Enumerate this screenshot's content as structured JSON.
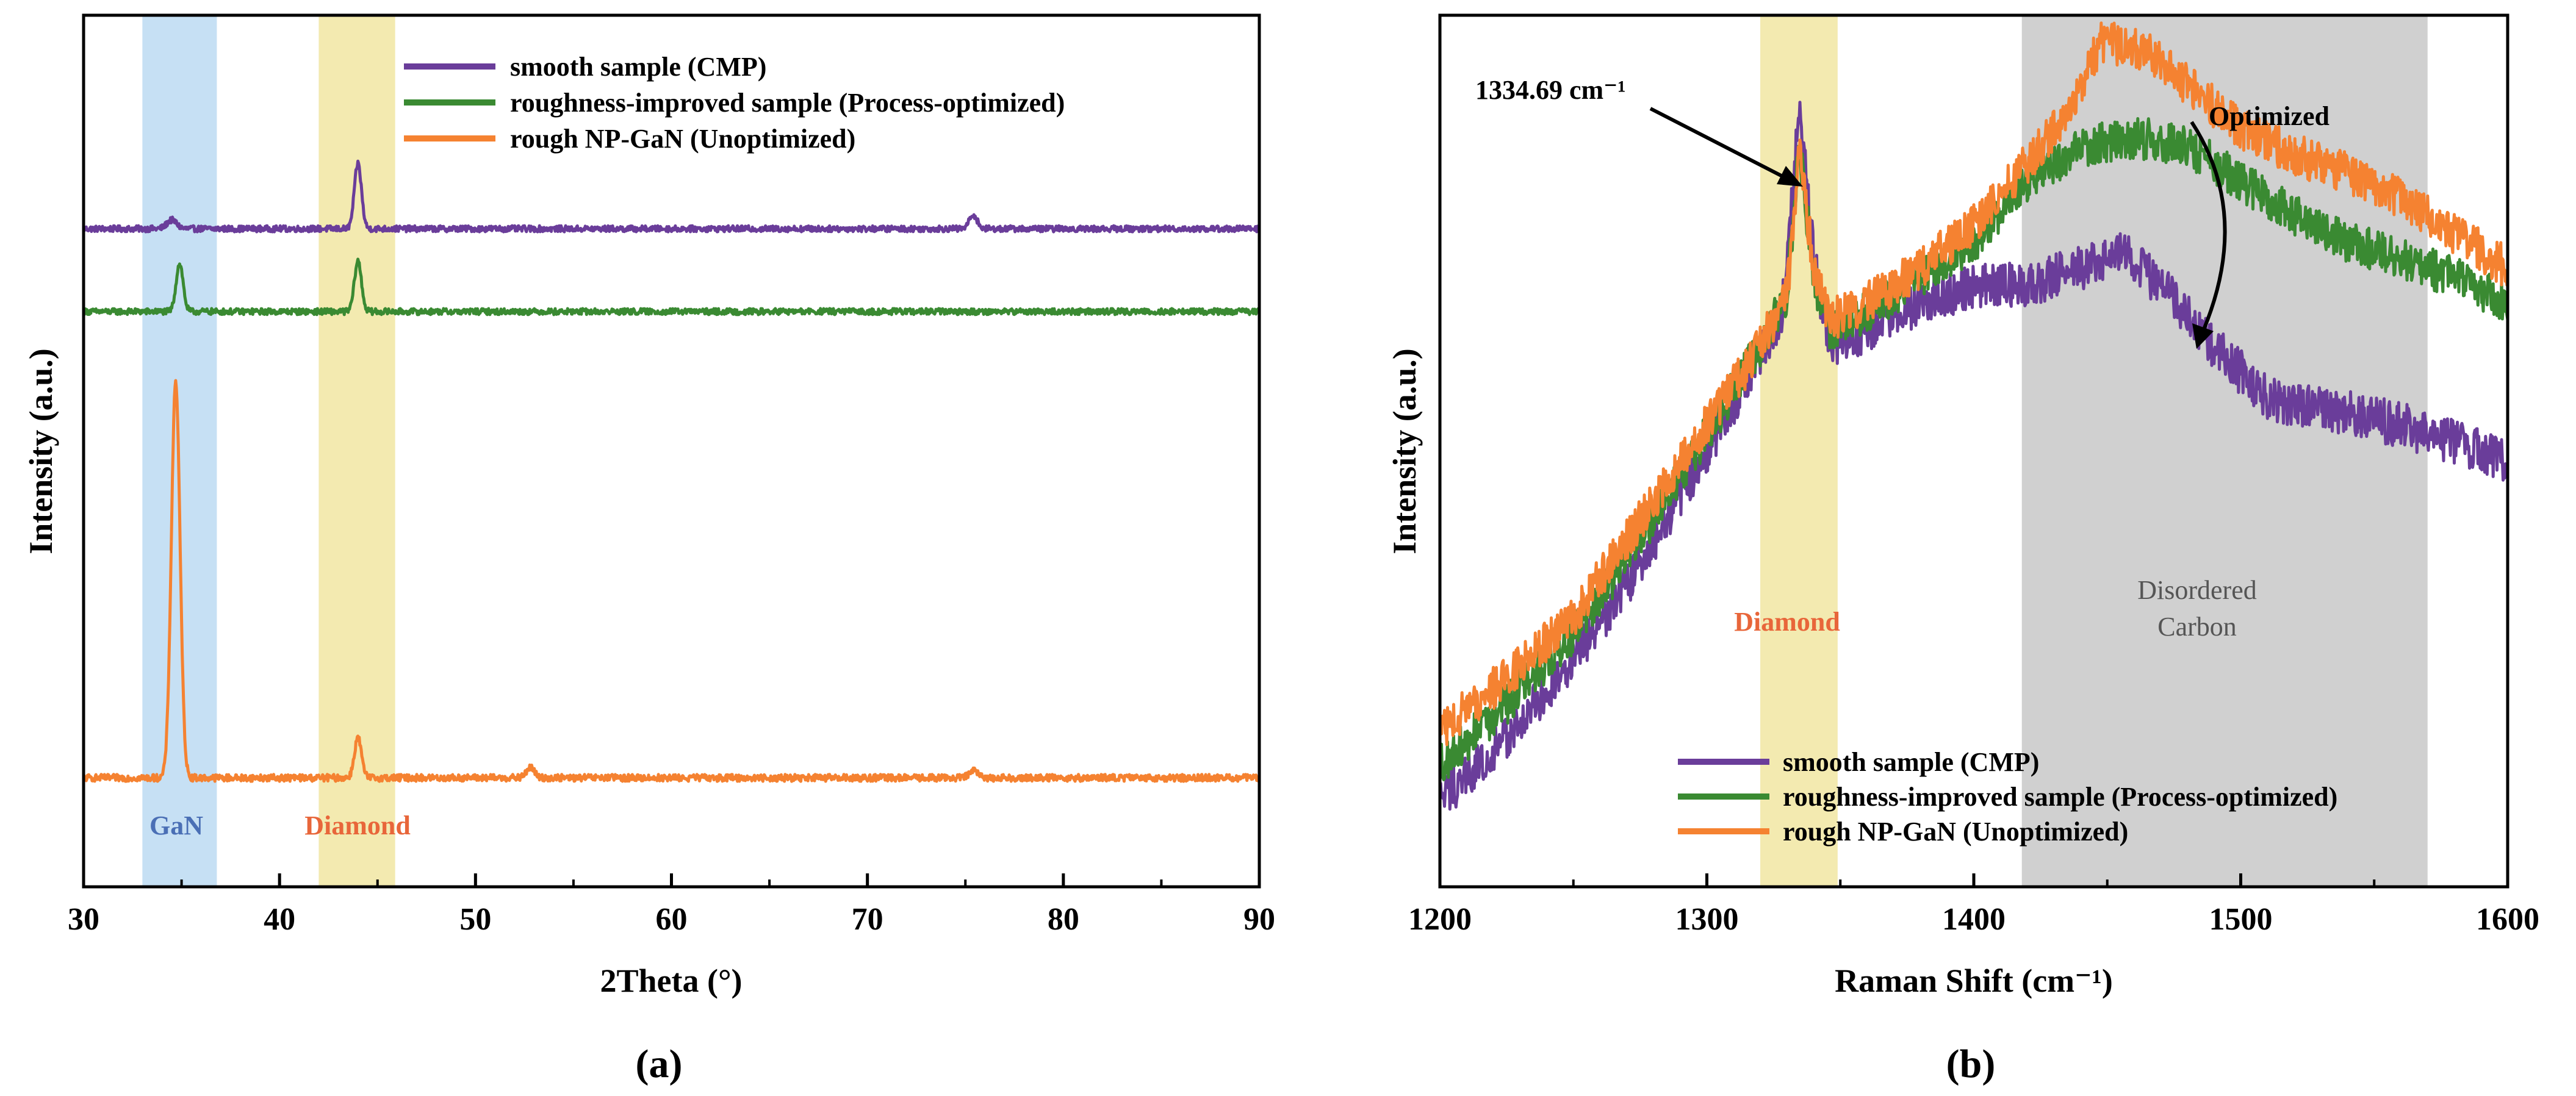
{
  "colors": {
    "smooth": "#6a3d9a",
    "improved": "#3a8a32",
    "rough": "#f58231",
    "gan_band": "#c6e0f4",
    "diamond_band": "#f3eab0",
    "disordered_band": "#d0d0d0",
    "gan_text": "#4a6fb5",
    "diamond_text": "#e8663a",
    "carbon_text": "#555555"
  },
  "chart_data": [
    {
      "id": "a",
      "type": "line",
      "panel_label": "(a)",
      "title": "",
      "xlabel": "2Theta (°)",
      "ylabel": "Intensity (a.u.)",
      "xlim": [
        30,
        90
      ],
      "xticks": [
        "30",
        "40",
        "50",
        "60",
        "70",
        "80",
        "90"
      ],
      "ylim": [
        0,
        100
      ],
      "yticks_shown": false,
      "legend": {
        "position": "top-center",
        "entries": [
          "smooth sample (CMP)",
          "roughness-improved sample (Process-optimized)",
          "rough NP-GaN (Unoptimized)"
        ]
      },
      "bands": [
        {
          "label": "GaN",
          "x_range": [
            33.0,
            36.8
          ],
          "color_key": "gan_band",
          "text_color_key": "gan_text"
        },
        {
          "label": "Diamond",
          "x_range": [
            42.0,
            45.9
          ],
          "color_key": "diamond_band",
          "text_color_key": "diamond_text"
        }
      ],
      "series": [
        {
          "name": "smooth sample (CMP)",
          "color_key": "smooth",
          "baseline": 75.5,
          "noise": 0.35,
          "peaks": [
            {
              "x": 34.5,
              "h": 1.0,
              "w": 0.25
            },
            {
              "x": 44.0,
              "h": 7.5,
              "w": 0.18
            },
            {
              "x": 75.4,
              "h": 1.6,
              "w": 0.2
            }
          ]
        },
        {
          "name": "roughness-improved sample (Process-optimized)",
          "color_key": "improved",
          "baseline": 66.0,
          "noise": 0.35,
          "peaks": [
            {
              "x": 34.9,
              "h": 5.5,
              "w": 0.18
            },
            {
              "x": 44.0,
              "h": 5.8,
              "w": 0.18
            }
          ]
        },
        {
          "name": "rough NP-GaN (Unoptimized)",
          "color_key": "rough",
          "baseline": 12.5,
          "noise": 0.4,
          "peaks": [
            {
              "x": 34.7,
              "h": 45.5,
              "w": 0.22
            },
            {
              "x": 44.0,
              "h": 4.6,
              "w": 0.18
            },
            {
              "x": 52.8,
              "h": 1.2,
              "w": 0.2
            },
            {
              "x": 75.4,
              "h": 1.0,
              "w": 0.2
            }
          ]
        }
      ]
    },
    {
      "id": "b",
      "type": "line",
      "panel_label": "(b)",
      "title": "",
      "xlabel": "Raman Shift (cm⁻¹)",
      "ylabel": "Intensity (a.u.)",
      "xlim": [
        1200,
        1600
      ],
      "xticks": [
        "1200",
        "1300",
        "1400",
        "1500",
        "1600"
      ],
      "ylim": [
        0,
        100
      ],
      "yticks_shown": false,
      "legend": {
        "position": "bottom-center",
        "entries": [
          "smooth sample (CMP)",
          "roughness-improved sample (Process-optimized)",
          "rough NP-GaN (Unoptimized)"
        ]
      },
      "bands": [
        {
          "label": "Diamond",
          "x_range": [
            1320,
            1349
          ],
          "color_key": "diamond_band",
          "text_color_key": "diamond_text"
        },
        {
          "label": "Disordered Carbon",
          "x_range": [
            1418,
            1570
          ],
          "color_key": "disordered_band",
          "text_color_key": "carbon_text"
        }
      ],
      "annotations": {
        "peak_label": "1334.69 cm⁻¹",
        "peak_x": 1334.69,
        "optimized_label": "Optimized"
      },
      "series": [
        {
          "name": "smooth sample (CMP)",
          "color_key": "smooth",
          "noise": 1.3,
          "points": [
            [
              1200,
              10
            ],
            [
              1225,
              17
            ],
            [
              1250,
              26
            ],
            [
              1275,
              37
            ],
            [
              1300,
              50
            ],
            [
              1320,
              61
            ],
            [
              1328,
              66
            ],
            [
              1334.69,
              89
            ],
            [
              1340,
              72
            ],
            [
              1346,
              62
            ],
            [
              1360,
              64
            ],
            [
              1380,
              67
            ],
            [
              1400,
              69
            ],
            [
              1420,
              69
            ],
            [
              1440,
              71
            ],
            [
              1455,
              73
            ],
            [
              1470,
              69
            ],
            [
              1490,
              62
            ],
            [
              1510,
              56
            ],
            [
              1530,
              55
            ],
            [
              1560,
              53
            ],
            [
              1580,
              51
            ],
            [
              1600,
              49
            ]
          ]
        },
        {
          "name": "roughness-improved sample (Process-optimized)",
          "color_key": "improved",
          "noise": 1.2,
          "points": [
            [
              1200,
              14
            ],
            [
              1225,
              21
            ],
            [
              1250,
              29
            ],
            [
              1275,
              40
            ],
            [
              1300,
              52
            ],
            [
              1320,
              62
            ],
            [
              1330,
              68
            ],
            [
              1334.69,
              85
            ],
            [
              1340,
              70
            ],
            [
              1346,
              64
            ],
            [
              1360,
              66
            ],
            [
              1380,
              70
            ],
            [
              1400,
              74
            ],
            [
              1420,
              81
            ],
            [
              1440,
              85
            ],
            [
              1460,
              86
            ],
            [
              1480,
              85
            ],
            [
              1500,
              81
            ],
            [
              1520,
              77
            ],
            [
              1540,
              74
            ],
            [
              1560,
              72
            ],
            [
              1580,
              70
            ],
            [
              1600,
              67
            ]
          ]
        },
        {
          "name": "rough NP-GaN (Unoptimized)",
          "color_key": "rough",
          "noise": 1.2,
          "points": [
            [
              1200,
              18
            ],
            [
              1225,
              24
            ],
            [
              1250,
              31
            ],
            [
              1275,
              42
            ],
            [
              1300,
              53
            ],
            [
              1320,
              62
            ],
            [
              1330,
              68
            ],
            [
              1334.69,
              84
            ],
            [
              1340,
              71
            ],
            [
              1346,
              65
            ],
            [
              1360,
              67
            ],
            [
              1380,
              71
            ],
            [
              1400,
              76
            ],
            [
              1420,
              83
            ],
            [
              1435,
              89
            ],
            [
              1448,
              97
            ],
            [
              1465,
              96
            ],
            [
              1480,
              92
            ],
            [
              1500,
              87
            ],
            [
              1520,
              84
            ],
            [
              1540,
              82
            ],
            [
              1560,
              79
            ],
            [
              1580,
              75
            ],
            [
              1600,
              71
            ]
          ]
        }
      ]
    }
  ]
}
